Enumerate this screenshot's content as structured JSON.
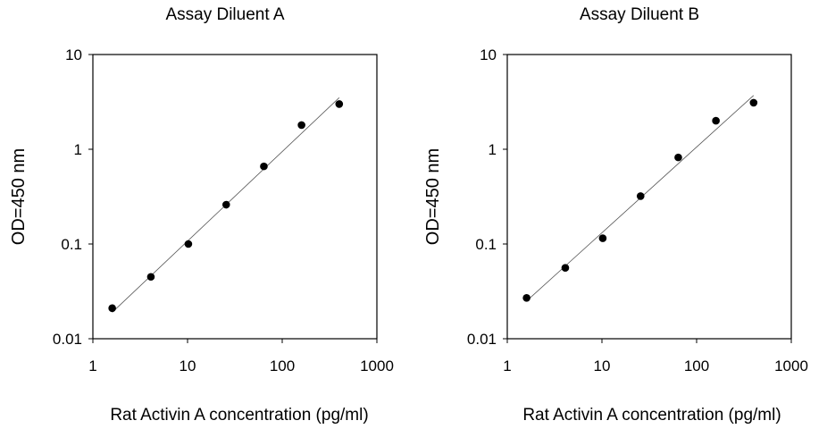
{
  "chart_data": [
    {
      "type": "scatter",
      "title": "Assay Diluent A",
      "xlabel": "Rat Activin A concentration (pg/ml)",
      "ylabel": "OD=450 nm",
      "xscale": "log",
      "yscale": "log",
      "xlim": [
        1,
        1000
      ],
      "ylim": [
        0.01,
        10
      ],
      "x_ticks": [
        1,
        10,
        100,
        1000
      ],
      "x_tick_labels": [
        "1",
        "10",
        "100",
        "1000"
      ],
      "y_ticks": [
        0.01,
        0.1,
        1,
        10
      ],
      "y_tick_labels": [
        "0.01",
        "0.1",
        "1",
        "10"
      ],
      "grid": false,
      "series": [
        {
          "x": [
            1.6,
            4.1,
            10.2,
            25.6,
            64,
            160,
            400
          ],
          "y": [
            0.021,
            0.045,
            0.1,
            0.26,
            0.66,
            1.8,
            3.0
          ]
        }
      ],
      "fit_line": {
        "x": [
          1.6,
          400
        ],
        "y": [
          0.019,
          3.5
        ]
      }
    },
    {
      "type": "scatter",
      "title": "Assay Diluent B",
      "xlabel": "Rat Activin A concentration (pg/ml)",
      "ylabel": "OD=450 nm",
      "xscale": "log",
      "yscale": "log",
      "xlim": [
        1,
        1000
      ],
      "ylim": [
        0.01,
        10
      ],
      "x_ticks": [
        1,
        10,
        100,
        1000
      ],
      "x_tick_labels": [
        "1",
        "10",
        "100",
        "1000"
      ],
      "y_ticks": [
        0.01,
        0.1,
        1,
        10
      ],
      "y_tick_labels": [
        "0.01",
        "0.1",
        "1",
        "10"
      ],
      "grid": false,
      "series": [
        {
          "x": [
            1.6,
            4.1,
            10.2,
            25.6,
            64,
            160,
            400
          ],
          "y": [
            0.027,
            0.056,
            0.115,
            0.32,
            0.82,
            2.0,
            3.1
          ]
        }
      ],
      "fit_line": {
        "x": [
          1.6,
          400
        ],
        "y": [
          0.025,
          3.7
        ]
      }
    }
  ]
}
